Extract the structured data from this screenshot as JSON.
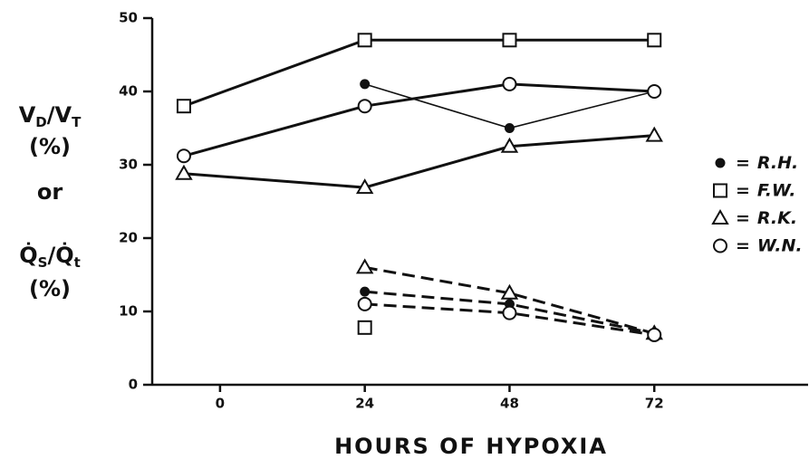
{
  "chart_data": {
    "type": "line",
    "x_label": "HOURS OF HYPOXIA",
    "y_label_lines": [
      [
        {
          "t": "V"
        },
        {
          "t": "D",
          "sub": true
        },
        {
          "t": "/V"
        },
        {
          "t": "T",
          "sub": true
        }
      ],
      [
        {
          "t": "(%)"
        }
      ],
      [
        {
          "t": "or"
        }
      ],
      [
        {
          "t": "Q̇"
        },
        {
          "t": "S",
          "sub": true
        },
        {
          "t": "/Q̇"
        },
        {
          "t": "t",
          "sub": true
        }
      ],
      [
        {
          "t": "(%)"
        }
      ]
    ],
    "x": [
      -6,
      24,
      48,
      72
    ],
    "xlim": [
      -11.25,
      97.5
    ],
    "xticks": [
      0,
      24,
      48,
      72
    ],
    "ylim": [
      0,
      50
    ],
    "yticks": [
      0,
      10,
      20,
      30,
      40,
      50
    ],
    "legend_separator": "=",
    "color": "#111111",
    "series": [
      {
        "name": "R.H.",
        "marker": "dot",
        "line_width": 1.6,
        "vd_vt_values": [
          null,
          41,
          35,
          40
        ],
        "qs_qt_values": [
          null,
          12.7,
          11,
          7
        ]
      },
      {
        "name": "F.W.",
        "marker": "square",
        "line_width": 3,
        "vd_vt_values": [
          38,
          47,
          47,
          47
        ],
        "qs_qt_values": [
          null,
          7.8,
          null,
          null
        ]
      },
      {
        "name": "R.K.",
        "marker": "triangle",
        "line_width": 3,
        "vd_vt_values": [
          28.8,
          26.9,
          32.5,
          34
        ],
        "qs_qt_values": [
          null,
          16,
          12.5,
          7
        ]
      },
      {
        "name": "W.N.",
        "marker": "circle",
        "line_width": 3,
        "vd_vt_values": [
          31.2,
          38,
          41,
          40
        ],
        "qs_qt_values": [
          null,
          11,
          9.8,
          6.8
        ]
      }
    ]
  }
}
